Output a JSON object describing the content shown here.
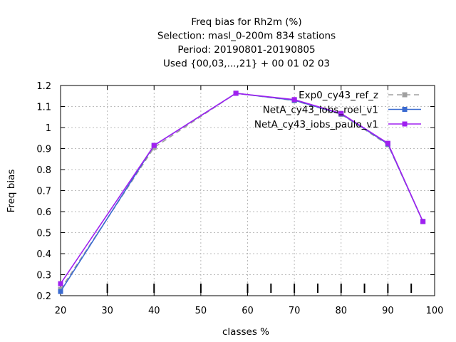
{
  "chart_data": {
    "type": "line",
    "title_lines": [
      "Freq bias  for Rh2m (%)",
      "Selection: masl_0-200m    834 stations",
      "Period: 20190801-20190805",
      "Used {00,03,...,21} + 00 01 02 03"
    ],
    "xlabel": "classes %",
    "ylabel": "Freq bias",
    "xlim": [
      20,
      100
    ],
    "ylim": [
      0.2,
      1.2
    ],
    "x_ticks": [
      20,
      30,
      40,
      50,
      60,
      70,
      80,
      90,
      100
    ],
    "y_ticks": [
      0.2,
      0.3,
      0.4,
      0.5,
      0.6,
      0.7,
      0.8,
      0.9,
      1,
      1.1,
      1.2
    ],
    "x_tick_labels": [
      "20",
      "30",
      "40",
      "50",
      "60",
      "70",
      "80",
      "90",
      "100"
    ],
    "y_tick_labels": [
      "0.2",
      "0.3",
      "0.4",
      "0.5",
      "0.6",
      "0.7",
      "0.8",
      "0.9",
      "1",
      "1.1",
      "1.2"
    ],
    "grid": true,
    "legend_position": "top-right",
    "observation_marks_x": [
      30,
      40,
      50,
      60,
      65,
      70,
      75,
      80,
      85,
      90,
      95
    ],
    "series": [
      {
        "name": "Exp0_cy43_ref_z",
        "color": "#a0a0a0",
        "style": "dashed",
        "x": [
          20,
          40,
          57.5,
          70,
          80,
          90,
          97.5
        ],
        "values": [
          0.23,
          0.905,
          1.163,
          1.128,
          1.063,
          0.918,
          0.553
        ]
      },
      {
        "name": "NetA_cy43_iobs_roel_v1",
        "color": "#3a6ad0",
        "style": "solid",
        "x": [
          20,
          40,
          57.5,
          70,
          80,
          90,
          97.5
        ],
        "values": [
          0.22,
          0.915,
          1.163,
          1.13,
          1.065,
          0.922,
          0.553
        ]
      },
      {
        "name": "NetA_cy43_iobs_paulo_v1",
        "color": "#a020f0",
        "style": "solid",
        "x": [
          20,
          40,
          57.5,
          70,
          80,
          90,
          97.5
        ],
        "values": [
          0.257,
          0.915,
          1.163,
          1.133,
          1.067,
          0.925,
          0.553
        ]
      }
    ]
  }
}
